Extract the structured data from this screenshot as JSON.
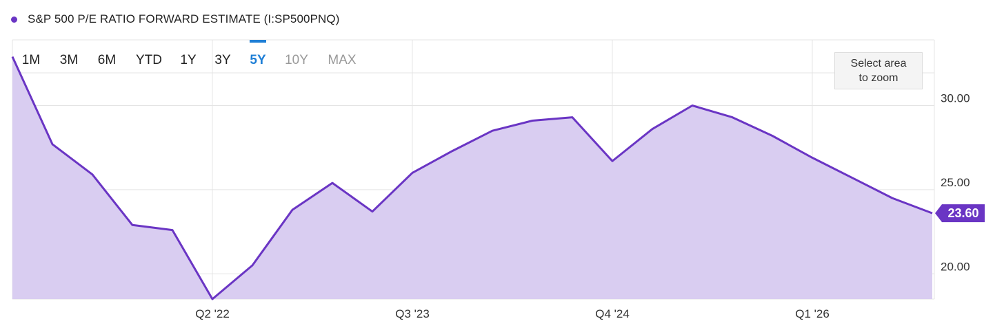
{
  "legend": {
    "title": "S&P 500 P/E RATIO FORWARD ESTIMATE (I:SP500PNQ)"
  },
  "range_buttons": [
    {
      "label": "1M",
      "state": "normal"
    },
    {
      "label": "3M",
      "state": "normal"
    },
    {
      "label": "6M",
      "state": "normal"
    },
    {
      "label": "YTD",
      "state": "normal"
    },
    {
      "label": "1Y",
      "state": "normal"
    },
    {
      "label": "3Y",
      "state": "normal"
    },
    {
      "label": "5Y",
      "state": "active"
    },
    {
      "label": "10Y",
      "state": "disabled"
    },
    {
      "label": "MAX",
      "state": "disabled"
    }
  ],
  "zoom_hint": {
    "line1": "Select area",
    "line2": "to zoom"
  },
  "colors": {
    "series": "#6a35c4",
    "fill": "#d9cdf1",
    "grid": "#e4e4e4",
    "active_button": "#1f7fd6",
    "disabled_button": "#9a9a9a",
    "axis_text": "#333333"
  },
  "chart_data": {
    "type": "area",
    "series": [
      {
        "values": [
          32.9,
          27.7,
          25.9,
          22.9,
          22.6,
          18.5,
          20.5,
          23.8,
          25.4,
          23.7,
          26.0,
          27.3,
          28.5,
          29.1,
          29.3,
          26.7,
          28.6,
          30.0,
          29.3,
          28.2,
          26.9,
          25.7,
          24.5,
          23.6
        ]
      }
    ],
    "x_ticks": [
      "Q2 '22",
      "Q3 '23",
      "Q4 '24",
      "Q1 '26"
    ],
    "x_tick_index": [
      5,
      10,
      15,
      20
    ],
    "y_ticks": [
      20,
      25,
      30
    ],
    "y_tick_labels": [
      "20.00",
      "25.00",
      "30.00"
    ],
    "ylim": [
      18.5,
      33.9
    ],
    "last_value_label": "23.60",
    "grid": true,
    "y_axis_position": "right"
  }
}
